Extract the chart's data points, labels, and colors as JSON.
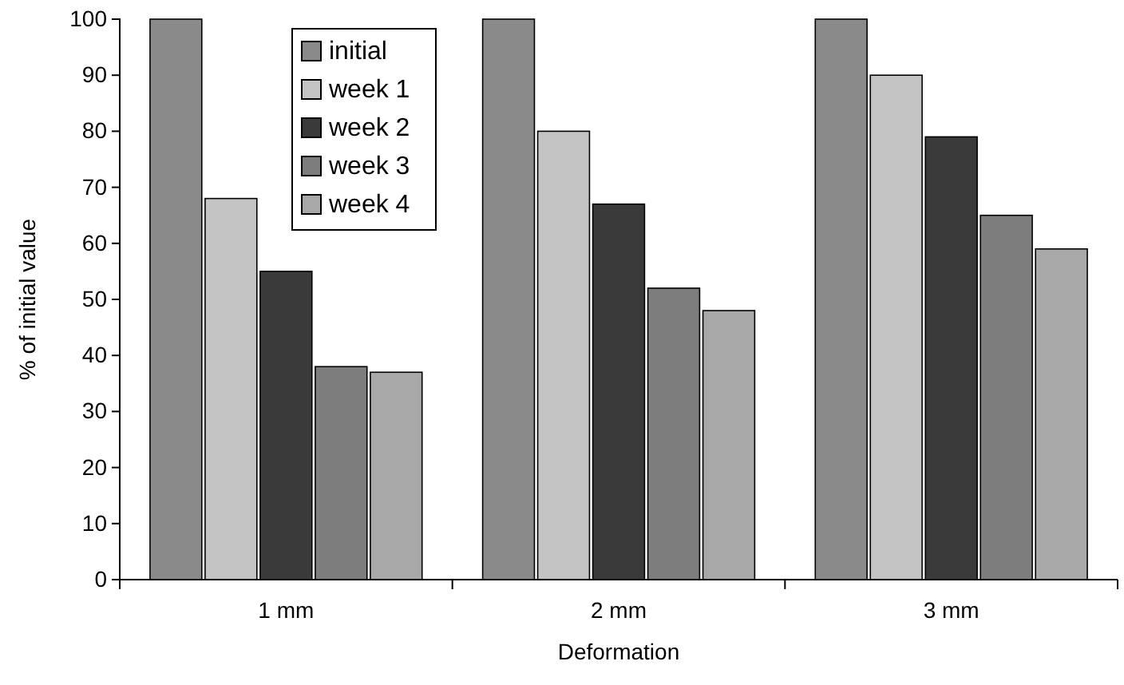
{
  "chart_data": {
    "type": "bar",
    "xlabel": "Deformation",
    "ylabel": "% of initial value",
    "categories": [
      "1 mm",
      "2 mm",
      "3 mm"
    ],
    "series": [
      {
        "name": "initial",
        "color": "#8a8a8a",
        "values": [
          100,
          100,
          100
        ]
      },
      {
        "name": "week 1",
        "color": "#c4c4c4",
        "values": [
          68,
          80,
          90
        ]
      },
      {
        "name": "week 2",
        "color": "#3a3a3a",
        "values": [
          55,
          67,
          79
        ]
      },
      {
        "name": "week 3",
        "color": "#7d7d7d",
        "values": [
          38,
          52,
          65
        ]
      },
      {
        "name": "week 4",
        "color": "#a8a8a8",
        "values": [
          37,
          48,
          59
        ]
      }
    ],
    "ylim": [
      0,
      100
    ],
    "yticks": [
      0,
      10,
      20,
      30,
      40,
      50,
      60,
      70,
      80,
      90,
      100
    ],
    "grid": false,
    "legend": "top"
  }
}
